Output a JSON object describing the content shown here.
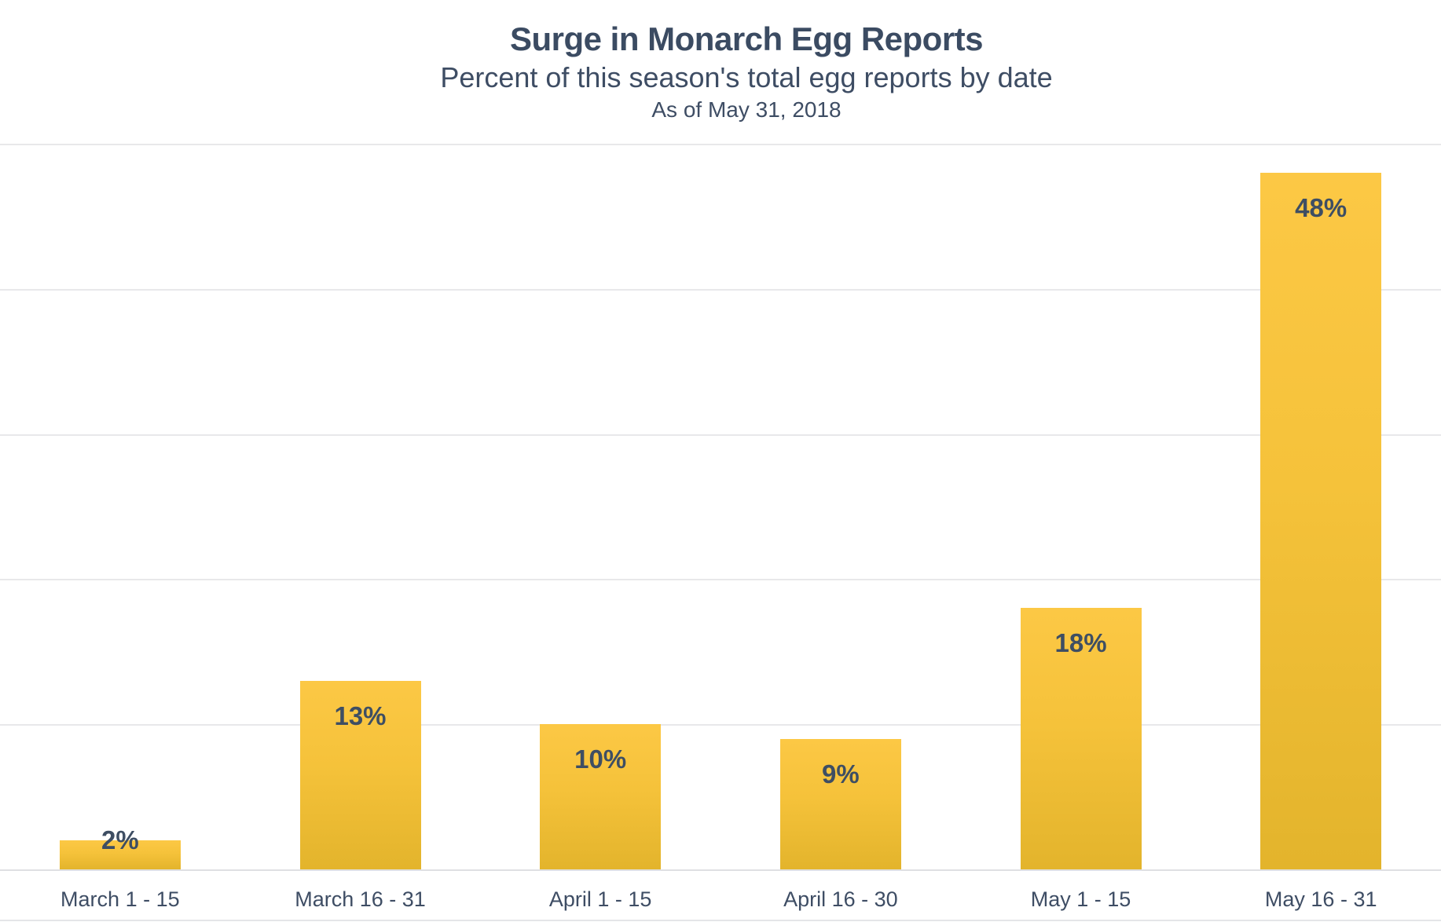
{
  "header": {
    "title": "Surge in Monarch Egg Reports",
    "subtitle": "Percent of this season's total egg reports by date",
    "asof": "As of May 31, 2018"
  },
  "chart_data": {
    "type": "bar",
    "title": "Surge in Monarch Egg Reports",
    "subtitle": "Percent of this season's total egg reports by date",
    "annotation": "As of May 31, 2018",
    "categories": [
      "March 1 - 15",
      "March 16 - 31",
      "April 1 - 15",
      "April 16 - 30",
      "May 1 - 15",
      "May 16 - 31"
    ],
    "values": [
      2,
      13,
      10,
      9,
      18,
      48
    ],
    "value_labels": [
      "2%",
      "13%",
      "10%",
      "9%",
      "18%",
      "48%"
    ],
    "xlabel": "",
    "ylabel": "",
    "ylim": [
      0,
      50
    ],
    "gridline_step_percent": 10,
    "grid": "horizontal gridlines only, no y-axis tick labels",
    "legend_position": "none",
    "colors": {
      "bar_gradient_top": "#FCC845",
      "bar_gradient_bottom": "#E3B42C",
      "text": "#3E4D64",
      "gridline": "#E8E8EA",
      "axis_line": "#DFE0E3"
    }
  }
}
